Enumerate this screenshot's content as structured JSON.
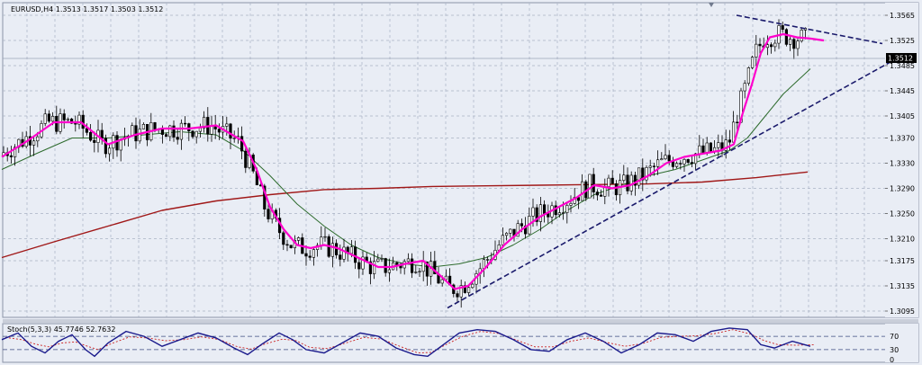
{
  "main_title": "EURUSD,H4  1.3513 1.3517 1.3503 1.3512",
  "osc_title": "Stoch(5,3,3) 45.7746 52.7632",
  "price_axis": [
    "1.3565",
    "1.3525",
    "1.3485",
    "1.3445",
    "1.3405",
    "1.3370",
    "1.3330",
    "1.3290",
    "1.3250",
    "1.3210",
    "1.3175",
    "1.3135",
    "1.3095"
  ],
  "current_price": "1.3512",
  "osc_axis": [
    "70",
    "30",
    "0"
  ],
  "colors": {
    "background": "#e9edf5",
    "grid": "#a9b2c4",
    "candle": "#000000",
    "ma_fast": "#ff00cc",
    "ma_mid": "#2d6b2d",
    "ma_slow": "#a01818",
    "trendline": "#1a1a6b",
    "stoch_main": "#1a1a8c",
    "stoch_signal": "#cc2222"
  },
  "chart_data": {
    "type": "candlestick",
    "symbol": "EURUSD",
    "timeframe": "H4",
    "y_range": [
      1.3085,
      1.3585
    ],
    "last_price": 1.3512,
    "ma_fast": [
      [
        2,
        1.334
      ],
      [
        30,
        1.3365
      ],
      [
        60,
        1.3395
      ],
      [
        90,
        1.3395
      ],
      [
        120,
        1.336
      ],
      [
        150,
        1.3375
      ],
      [
        180,
        1.3385
      ],
      [
        210,
        1.3385
      ],
      [
        240,
        1.339
      ],
      [
        270,
        1.3365
      ],
      [
        285,
        1.332
      ],
      [
        300,
        1.326
      ],
      [
        315,
        1.3225
      ],
      [
        330,
        1.32
      ],
      [
        345,
        1.3195
      ],
      [
        360,
        1.32
      ],
      [
        375,
        1.3195
      ],
      [
        390,
        1.3185
      ],
      [
        405,
        1.3175
      ],
      [
        420,
        1.3165
      ],
      [
        435,
        1.3165
      ],
      [
        450,
        1.317
      ],
      [
        470,
        1.3175
      ],
      [
        490,
        1.315
      ],
      [
        505,
        1.313
      ],
      [
        520,
        1.3135
      ],
      [
        540,
        1.3165
      ],
      [
        560,
        1.32
      ],
      [
        580,
        1.3225
      ],
      [
        600,
        1.3245
      ],
      [
        620,
        1.326
      ],
      [
        640,
        1.3275
      ],
      [
        660,
        1.3295
      ],
      [
        680,
        1.329
      ],
      [
        700,
        1.3295
      ],
      [
        720,
        1.331
      ],
      [
        740,
        1.333
      ],
      [
        760,
        1.334
      ],
      [
        780,
        1.3345
      ],
      [
        800,
        1.335
      ],
      [
        815,
        1.336
      ],
      [
        825,
        1.341
      ],
      [
        835,
        1.3455
      ],
      [
        845,
        1.3505
      ],
      [
        855,
        1.353
      ],
      [
        870,
        1.3535
      ],
      [
        885,
        1.353
      ],
      [
        900,
        1.3528
      ],
      [
        915,
        1.3525
      ]
    ],
    "ma_mid": [
      [
        2,
        1.332
      ],
      [
        40,
        1.3345
      ],
      [
        80,
        1.337
      ],
      [
        120,
        1.337
      ],
      [
        160,
        1.3375
      ],
      [
        200,
        1.338
      ],
      [
        240,
        1.3375
      ],
      [
        270,
        1.335
      ],
      [
        300,
        1.331
      ],
      [
        330,
        1.3265
      ],
      [
        360,
        1.323
      ],
      [
        390,
        1.32
      ],
      [
        420,
        1.318
      ],
      [
        450,
        1.317
      ],
      [
        480,
        1.3165
      ],
      [
        510,
        1.317
      ],
      [
        540,
        1.318
      ],
      [
        570,
        1.32
      ],
      [
        600,
        1.3225
      ],
      [
        630,
        1.3255
      ],
      [
        660,
        1.328
      ],
      [
        690,
        1.3295
      ],
      [
        720,
        1.331
      ],
      [
        750,
        1.332
      ],
      [
        780,
        1.3335
      ],
      [
        810,
        1.335
      ],
      [
        830,
        1.337
      ],
      [
        850,
        1.3405
      ],
      [
        870,
        1.344
      ],
      [
        900,
        1.348
      ]
    ],
    "ma_slow": [
      [
        2,
        1.318
      ],
      [
        60,
        1.3205
      ],
      [
        120,
        1.323
      ],
      [
        180,
        1.3255
      ],
      [
        240,
        1.327
      ],
      [
        300,
        1.328
      ],
      [
        360,
        1.3288
      ],
      [
        420,
        1.329
      ],
      [
        480,
        1.3293
      ],
      [
        540,
        1.3294
      ],
      [
        600,
        1.3295
      ],
      [
        660,
        1.3296
      ],
      [
        720,
        1.3297
      ],
      [
        780,
        1.33
      ],
      [
        840,
        1.3307
      ],
      [
        897,
        1.3316
      ]
    ],
    "trendlines": [
      {
        "name": "support",
        "points": [
          [
            497,
            1.31
          ],
          [
            988,
            1.349
          ]
        ]
      },
      {
        "name": "resistance",
        "points": [
          [
            818,
            1.3565
          ],
          [
            980,
            1.352
          ]
        ]
      }
    ],
    "stochastic": {
      "params": [
        5,
        3,
        3
      ],
      "main": 45.7746,
      "signal": 52.7632,
      "levels": [
        30,
        70
      ],
      "main_series": [
        [
          2,
          60
        ],
        [
          20,
          80
        ],
        [
          35,
          40
        ],
        [
          50,
          20
        ],
        [
          65,
          55
        ],
        [
          80,
          75
        ],
        [
          95,
          30
        ],
        [
          105,
          10
        ],
        [
          120,
          50
        ],
        [
          140,
          85
        ],
        [
          160,
          70
        ],
        [
          180,
          40
        ],
        [
          200,
          60
        ],
        [
          220,
          80
        ],
        [
          240,
          65
        ],
        [
          260,
          35
        ],
        [
          275,
          15
        ],
        [
          290,
          45
        ],
        [
          310,
          80
        ],
        [
          325,
          60
        ],
        [
          340,
          30
        ],
        [
          360,
          20
        ],
        [
          380,
          50
        ],
        [
          400,
          80
        ],
        [
          420,
          70
        ],
        [
          440,
          35
        ],
        [
          460,
          15
        ],
        [
          475,
          10
        ],
        [
          490,
          40
        ],
        [
          510,
          80
        ],
        [
          530,
          90
        ],
        [
          550,
          85
        ],
        [
          570,
          60
        ],
        [
          590,
          30
        ],
        [
          610,
          25
        ],
        [
          630,
          60
        ],
        [
          650,
          80
        ],
        [
          670,
          55
        ],
        [
          690,
          20
        ],
        [
          710,
          45
        ],
        [
          730,
          80
        ],
        [
          750,
          75
        ],
        [
          770,
          55
        ],
        [
          790,
          85
        ],
        [
          810,
          95
        ],
        [
          830,
          90
        ],
        [
          845,
          45
        ],
        [
          860,
          35
        ],
        [
          880,
          55
        ],
        [
          900,
          40
        ]
      ]
    }
  }
}
